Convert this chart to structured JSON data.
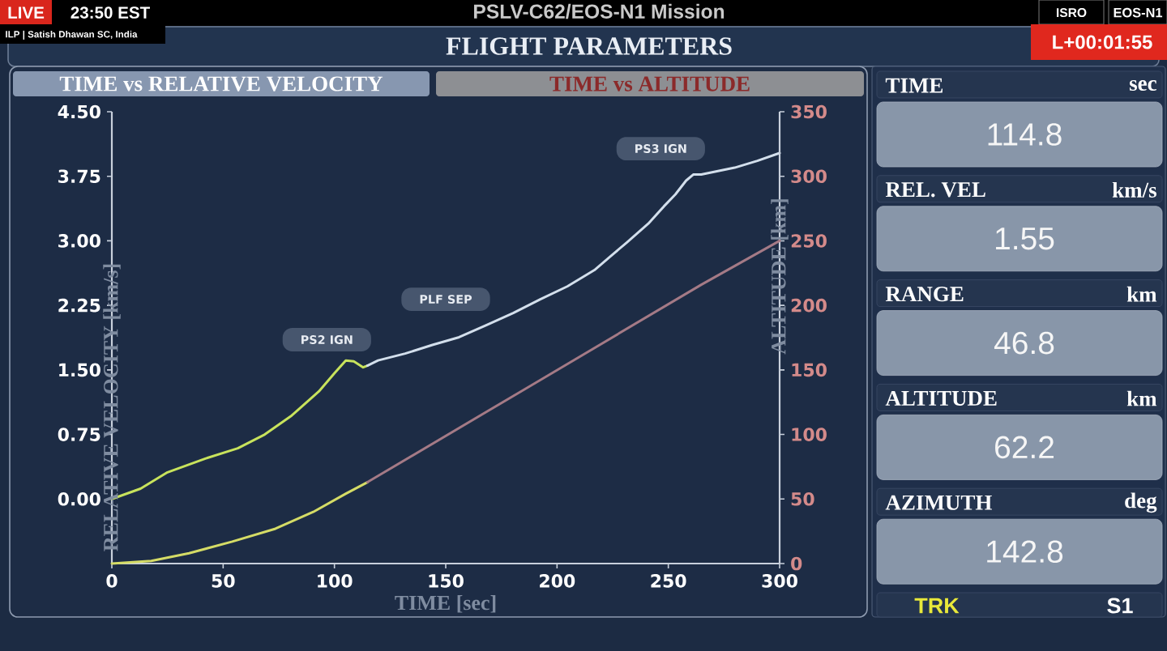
{
  "chart_data": [
    {
      "type": "other",
      "title": "PSLV-C62/EOS-N1 Mission",
      "subtitle": "FLIGHT PARAMETERS",
      "annotations": [
        "LIVE",
        "23:50 EST",
        "ILP | Satish Dhawan SC, India",
        "ISRO",
        "EOS-N1",
        "L+00:01:55"
      ]
    },
    {
      "type": "line",
      "title": "TIME vs RELATIVE VELOCITY",
      "subtitle": "TIME vs ALTITUDE",
      "xlabel": "TIME [sec]",
      "ylabel": "RELATIVE VELOCITY [km/s]",
      "y2label": "ALTITUDE [km]",
      "xlim": [
        0,
        300
      ],
      "xticks": [
        0,
        50,
        100,
        150,
        200,
        250,
        300
      ],
      "ylim": [
        -0.75,
        4.5
      ],
      "yticks": [
        {
          "value": 0,
          "label": "0.00"
        },
        0.75,
        {
          "value": 1.5,
          "label": "1.50"
        },
        2.25,
        {
          "value": 3,
          "label": "3.00"
        },
        3.75,
        {
          "value": 4.5,
          "label": "4.50"
        }
      ],
      "y2lim": [
        0,
        350
      ],
      "y2ticks": [
        0,
        50,
        100,
        150,
        200,
        250,
        300,
        350
      ],
      "series": [
        {
          "color": "#c8e35c",
          "x": [
            0,
            12.9,
            25,
            42,
            56.6,
            68.7,
            80.8,
            93,
            100.3,
            105.1,
            108.7,
            112.9,
            114.8
          ],
          "values": [
            0,
            0.12,
            0.31,
            0.47,
            0.59,
            0.75,
            0.97,
            1.25,
            1.47,
            1.61,
            1.6,
            1.53,
            1.55
          ]
        },
        {
          "color": "#d3dfec",
          "x": [
            114.8,
            119.6,
            131.8,
            144,
            156,
            168.2,
            180.3,
            192.5,
            204.6,
            216.8,
            224,
            231.3,
            241,
            248,
            253.2,
            258,
            261.2,
            264.8,
            279.8,
            290,
            300
          ],
          "values": [
            1.55,
            1.61,
            1.69,
            1.79,
            1.88,
            2.02,
            2.16,
            2.32,
            2.47,
            2.66,
            2.82,
            2.98,
            3.2,
            3.4,
            3.54,
            3.7,
            3.77,
            3.77,
            3.85,
            3.93,
            4.02
          ]
        },
        {
          "color": "#d5dc66",
          "axis": "y2",
          "x": [
            0,
            17.7,
            34.7,
            54.1,
            73.5,
            90.5,
            105,
            114.8
          ],
          "values": [
            0,
            2,
            8,
            17,
            27,
            40,
            54,
            63
          ]
        },
        {
          "color": "#a47a86",
          "axis": "y2",
          "x": [
            114.8,
            186.4,
            264.8,
            300
          ],
          "values": [
            63,
            136,
            216,
            250
          ]
        }
      ],
      "annotations": [
        {
          "text": "PS2 IGN",
          "x": 114.8,
          "y": 1.55
        },
        {
          "text": "PLF SEP",
          "x": 168.2,
          "y": 2.02
        },
        {
          "text": "PS3 IGN",
          "x": 264.8,
          "y": 3.77
        }
      ]
    },
    {
      "type": "other",
      "annotations": [
        "TIME",
        "sec",
        "114.8",
        "REL. VEL",
        "km/s",
        "1.55",
        "RANGE",
        "km",
        "46.8",
        "ALTITUDE",
        "km",
        "62.2",
        "AZIMUTH",
        "deg",
        "142.8",
        "TRK",
        "S1"
      ]
    }
  ]
}
